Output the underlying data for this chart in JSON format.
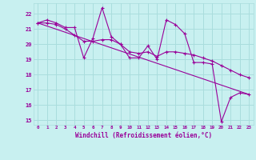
{
  "xlabel": "Windchill (Refroidissement éolien,°C)",
  "bg_color": "#c8f0f0",
  "grid_color": "#aadddd",
  "line_color": "#990099",
  "xlim": [
    -0.5,
    23.5
  ],
  "ylim": [
    14.7,
    22.7
  ],
  "yticks": [
    15,
    16,
    17,
    18,
    19,
    20,
    21,
    22
  ],
  "xticks": [
    0,
    1,
    2,
    3,
    4,
    5,
    6,
    7,
    8,
    9,
    10,
    11,
    12,
    13,
    14,
    15,
    16,
    17,
    18,
    19,
    20,
    21,
    22,
    23
  ],
  "line1_x": [
    0,
    1,
    2,
    3,
    4,
    5,
    6,
    7,
    8,
    9,
    10,
    11,
    12,
    13,
    14,
    15,
    16,
    17,
    18,
    19,
    20,
    21,
    22,
    23
  ],
  "line1_y": [
    21.4,
    21.6,
    21.4,
    21.1,
    21.1,
    19.1,
    20.4,
    22.4,
    20.5,
    20.0,
    19.1,
    19.1,
    19.9,
    19.0,
    21.6,
    21.3,
    20.7,
    18.8,
    18.8,
    18.7,
    14.9,
    16.5,
    16.8,
    16.7
  ],
  "line2_x": [
    0,
    1,
    2,
    3,
    4,
    5,
    6,
    7,
    8,
    9,
    10,
    11,
    12,
    13,
    14,
    15,
    16,
    17,
    18,
    19,
    20,
    21,
    22,
    23
  ],
  "line2_y": [
    21.4,
    21.4,
    21.3,
    21.0,
    20.6,
    20.2,
    20.2,
    20.3,
    20.3,
    20.0,
    19.5,
    19.4,
    19.5,
    19.2,
    19.5,
    19.5,
    19.4,
    19.3,
    19.1,
    18.9,
    18.6,
    18.3,
    18.0,
    17.8
  ],
  "line3_x": [
    0,
    23
  ],
  "line3_y": [
    21.4,
    16.7
  ]
}
